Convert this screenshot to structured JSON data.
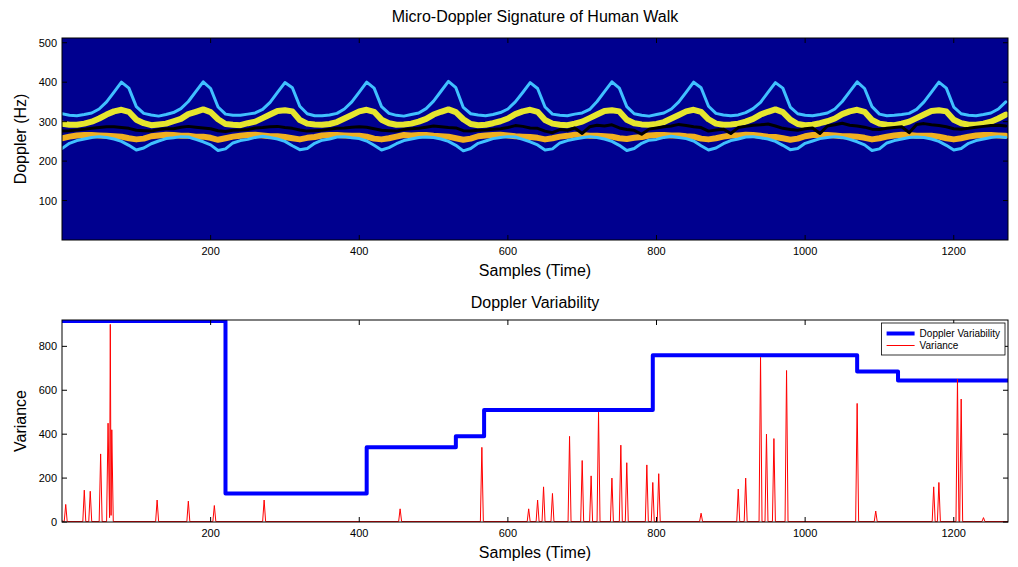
{
  "chart_data": [
    {
      "type": "line",
      "title": "Micro-Doppler Signature of Human Walk",
      "x_label": "Samples (Time)",
      "y_label": "Doppler (Hz)",
      "xlim": [
        0,
        1273
      ],
      "ylim": [
        0,
        512
      ],
      "xticks": [
        200,
        400,
        600,
        800,
        1000,
        1200
      ],
      "yticks": [
        100,
        200,
        300,
        400,
        500
      ],
      "x": [
        0,
        10,
        20,
        30,
        40,
        50,
        60,
        70,
        80,
        90,
        100,
        110,
        120,
        130,
        140,
        150,
        160,
        170,
        180,
        190,
        200,
        210,
        220,
        230,
        240,
        250,
        260,
        270,
        280,
        290,
        300,
        310,
        320,
        330,
        340,
        350,
        360,
        370,
        380,
        390,
        400,
        410,
        420,
        430,
        440,
        450,
        460,
        470,
        480,
        490,
        500,
        510,
        520,
        530,
        540,
        550,
        560,
        570,
        580,
        590,
        600,
        610,
        620,
        630,
        640,
        650,
        660,
        670,
        680,
        690,
        700,
        710,
        720,
        730,
        740,
        750,
        760,
        770,
        780,
        790,
        800,
        810,
        820,
        830,
        840,
        850,
        860,
        870,
        880,
        890,
        900,
        910,
        920,
        930,
        940,
        950,
        960,
        970,
        980,
        990,
        1000,
        1010,
        1020,
        1030,
        1040,
        1050,
        1060,
        1070,
        1080,
        1090,
        1100,
        1110,
        1120,
        1130,
        1140,
        1150,
        1160,
        1170,
        1180,
        1190,
        1200,
        1210,
        1220,
        1230,
        1240,
        1250,
        1260,
        1270
      ],
      "series": [
        {
          "color": "#40c0ff",
          "values": [
            320,
            316,
            315,
            318,
            322,
            332,
            350,
            375,
            400,
            385,
            338,
            321,
            317,
            314,
            318,
            323,
            333,
            351,
            376,
            401,
            384,
            337,
            319,
            316,
            316,
            319,
            322,
            331,
            349,
            374,
            399,
            386,
            339,
            320,
            315,
            315,
            317,
            321,
            332,
            350,
            375,
            400,
            385,
            338,
            321,
            316,
            314,
            318,
            322,
            333,
            352,
            377,
            402,
            386,
            336,
            320,
            317,
            315,
            318,
            323,
            332,
            350,
            374,
            399,
            384,
            337,
            319,
            316,
            315,
            319,
            322,
            331,
            351,
            376,
            401,
            385,
            338,
            320,
            316,
            314,
            318,
            322,
            332,
            350,
            375,
            400,
            386,
            339,
            321,
            317,
            315,
            317,
            323,
            333,
            349,
            374,
            399,
            385,
            337,
            320,
            316,
            315,
            318,
            322,
            332,
            351,
            376,
            401,
            384,
            338,
            319,
            315,
            316,
            318,
            321,
            331,
            350,
            375,
            400,
            385,
            337,
            320,
            316,
            315,
            318,
            322,
            332,
            350
          ]
        },
        {
          "color": "#e6e62e",
          "values": [
            295,
            292,
            292,
            295,
            300,
            308,
            318,
            326,
            330,
            325,
            305,
            296,
            291,
            293,
            295,
            301,
            307,
            319,
            325,
            331,
            324,
            306,
            294,
            292,
            291,
            296,
            300,
            309,
            318,
            327,
            329,
            326,
            304,
            295,
            293,
            292,
            294,
            299,
            308,
            317,
            326,
            330,
            325,
            305,
            296,
            292,
            293,
            295,
            300,
            307,
            318,
            325,
            331,
            324,
            306,
            294,
            291,
            292,
            296,
            301,
            308,
            319,
            326,
            330,
            325,
            304,
            295,
            292,
            291,
            295,
            300,
            309,
            318,
            327,
            329,
            326,
            305,
            296,
            293,
            292,
            294,
            299,
            308,
            317,
            326,
            330,
            325,
            306,
            295,
            292,
            293,
            295,
            300,
            307,
            318,
            325,
            331,
            324,
            305,
            294,
            291,
            292,
            296,
            301,
            308,
            319,
            326,
            330,
            325,
            304,
            295,
            292,
            291,
            295,
            300,
            309,
            318,
            327,
            329,
            326,
            305,
            296,
            292,
            292,
            295,
            300,
            308,
            318
          ]
        },
        {
          "color": "#f0b020",
          "values": [
            258,
            262,
            265,
            266,
            266,
            265,
            264,
            263,
            262,
            258,
            255,
            257,
            263,
            265,
            267,
            266,
            264,
            264,
            262,
            262,
            259,
            254,
            258,
            262,
            264,
            266,
            267,
            265,
            263,
            263,
            261,
            258,
            255,
            259,
            261,
            265,
            266,
            266,
            265,
            264,
            264,
            262,
            257,
            255,
            258,
            262,
            266,
            265,
            266,
            266,
            264,
            263,
            262,
            258,
            254,
            257,
            263,
            265,
            266,
            267,
            265,
            263,
            262,
            261,
            259,
            255,
            258,
            262,
            264,
            267,
            266,
            264,
            264,
            263,
            262,
            258,
            256,
            259,
            261,
            265,
            266,
            266,
            265,
            265,
            263,
            262,
            257,
            255,
            258,
            262,
            265,
            265,
            267,
            266,
            264,
            262,
            261,
            258,
            254,
            257,
            263,
            266,
            266,
            266,
            265,
            263,
            263,
            262,
            259,
            255,
            258,
            262,
            265,
            267,
            266,
            264,
            264,
            264,
            262,
            258,
            255,
            258,
            262,
            265,
            266,
            266,
            265,
            264
          ]
        },
        {
          "color": "#40c0ff",
          "values": [
            232,
            245,
            252,
            256,
            260,
            262,
            260,
            256,
            250,
            240,
            228,
            233,
            244,
            251,
            257,
            259,
            262,
            261,
            255,
            249,
            241,
            227,
            231,
            246,
            252,
            255,
            260,
            263,
            260,
            256,
            250,
            239,
            229,
            232,
            245,
            253,
            256,
            261,
            262,
            259,
            257,
            251,
            240,
            228,
            234,
            244,
            252,
            256,
            260,
            261,
            260,
            256,
            250,
            240,
            226,
            232,
            245,
            251,
            257,
            260,
            262,
            261,
            255,
            249,
            241,
            228,
            231,
            246,
            252,
            256,
            259,
            262,
            260,
            256,
            250,
            240,
            227,
            232,
            245,
            253,
            255,
            260,
            263,
            260,
            257,
            251,
            239,
            228,
            233,
            244,
            252,
            256,
            261,
            262,
            259,
            256,
            250,
            240,
            229,
            232,
            245,
            251,
            257,
            260,
            262,
            260,
            255,
            249,
            241,
            227,
            231,
            246,
            252,
            256,
            260,
            261,
            260,
            256,
            250,
            240,
            228,
            232,
            245,
            252,
            256,
            260,
            262,
            260
          ]
        },
        {
          "color": "#000000",
          "values": [
            276,
            277,
            279,
            281,
            283,
            285,
            287,
            287,
            285,
            283,
            278,
            277,
            276,
            280,
            282,
            282,
            286,
            288,
            286,
            284,
            282,
            277,
            275,
            278,
            279,
            280,
            284,
            285,
            287,
            288,
            285,
            283,
            279,
            276,
            277,
            278,
            281,
            283,
            284,
            286,
            287,
            286,
            282,
            278,
            277,
            276,
            280,
            282,
            283,
            286,
            289,
            287,
            285,
            284,
            277,
            276,
            278,
            279,
            281,
            282,
            285,
            290,
            288,
            284,
            283,
            276,
            272,
            280,
            278,
            284,
            270,
            287,
            291,
            289,
            292,
            284,
            280,
            278,
            268,
            281,
            284,
            287,
            289,
            293,
            290,
            287,
            285,
            276,
            279,
            281,
            270,
            285,
            288,
            291,
            292,
            294,
            289,
            283,
            280,
            278,
            282,
            284,
            270,
            289,
            292,
            296,
            291,
            289,
            286,
            281,
            280,
            283,
            285,
            287,
            272,
            293,
            295,
            292,
            290,
            287,
            282,
            281,
            283,
            286,
            288,
            290,
            291,
            289
          ]
        }
      ]
    },
    {
      "type": "line",
      "title": "Doppler Variability",
      "x_label": "Samples (Time)",
      "y_label": "Variance",
      "xlim": [
        0,
        1273
      ],
      "ylim": [
        0,
        920
      ],
      "xticks": [
        200,
        400,
        600,
        800,
        1000,
        1200
      ],
      "yticks": [
        0,
        200,
        400,
        600,
        800
      ],
      "legend": "top-right",
      "series": [
        {
          "name": "Doppler Variability",
          "color": "#0000ff",
          "x": [
            0,
            220,
            220,
            410,
            410,
            530,
            530,
            568,
            568,
            795,
            795,
            1070,
            1070,
            1125,
            1125,
            1273
          ],
          "values": [
            915,
            915,
            130,
            130,
            340,
            340,
            390,
            390,
            510,
            510,
            760,
            760,
            685,
            685,
            645,
            645
          ]
        },
        {
          "name": "Variance",
          "color": "#ff0000",
          "x": [
            0,
            3,
            5,
            7,
            28,
            30,
            32,
            36,
            38,
            40,
            50,
            52,
            54,
            60,
            62,
            64,
            65,
            66,
            67,
            69,
            126,
            128,
            130,
            168,
            170,
            172,
            203,
            205,
            207,
            270,
            272,
            274,
            453,
            455,
            457,
            563,
            565,
            567,
            626,
            628,
            630,
            638,
            640,
            642,
            646,
            648,
            650,
            658,
            660,
            662,
            681,
            683,
            685,
            698,
            700,
            702,
            710,
            712,
            714,
            720,
            722,
            724,
            738,
            740,
            742,
            750,
            752,
            754,
            758,
            760,
            762,
            785,
            787,
            789,
            793,
            795,
            797,
            801,
            803,
            805,
            858,
            860,
            862,
            908,
            910,
            912,
            918,
            920,
            922,
            938,
            940,
            942,
            946,
            948,
            950,
            956,
            958,
            960,
            973,
            975,
            977,
            1068,
            1070,
            1072,
            1093,
            1095,
            1097,
            1171,
            1173,
            1175,
            1178,
            1180,
            1182,
            1203,
            1205,
            1207,
            1208,
            1210,
            1212,
            1238,
            1240,
            1242,
            1273
          ],
          "values": [
            5,
            2,
            80,
            2,
            2,
            145,
            2,
            2,
            140,
            2,
            2,
            310,
            2,
            2,
            450,
            20,
            900,
            30,
            420,
            2,
            2,
            100,
            2,
            2,
            95,
            2,
            2,
            75,
            2,
            2,
            100,
            2,
            2,
            60,
            2,
            2,
            340,
            2,
            2,
            60,
            2,
            2,
            100,
            2,
            2,
            160,
            2,
            2,
            130,
            2,
            2,
            390,
            2,
            2,
            280,
            2,
            2,
            210,
            2,
            2,
            500,
            2,
            2,
            200,
            2,
            2,
            350,
            2,
            2,
            270,
            2,
            2,
            260,
            2,
            2,
            180,
            2,
            2,
            220,
            2,
            2,
            40,
            2,
            2,
            150,
            2,
            2,
            200,
            2,
            2,
            750,
            2,
            2,
            400,
            2,
            2,
            380,
            2,
            2,
            690,
            2,
            2,
            540,
            2,
            2,
            50,
            2,
            2,
            160,
            2,
            2,
            180,
            2,
            2,
            650,
            2,
            2,
            560,
            2,
            2,
            20,
            2,
            2
          ]
        }
      ]
    }
  ]
}
